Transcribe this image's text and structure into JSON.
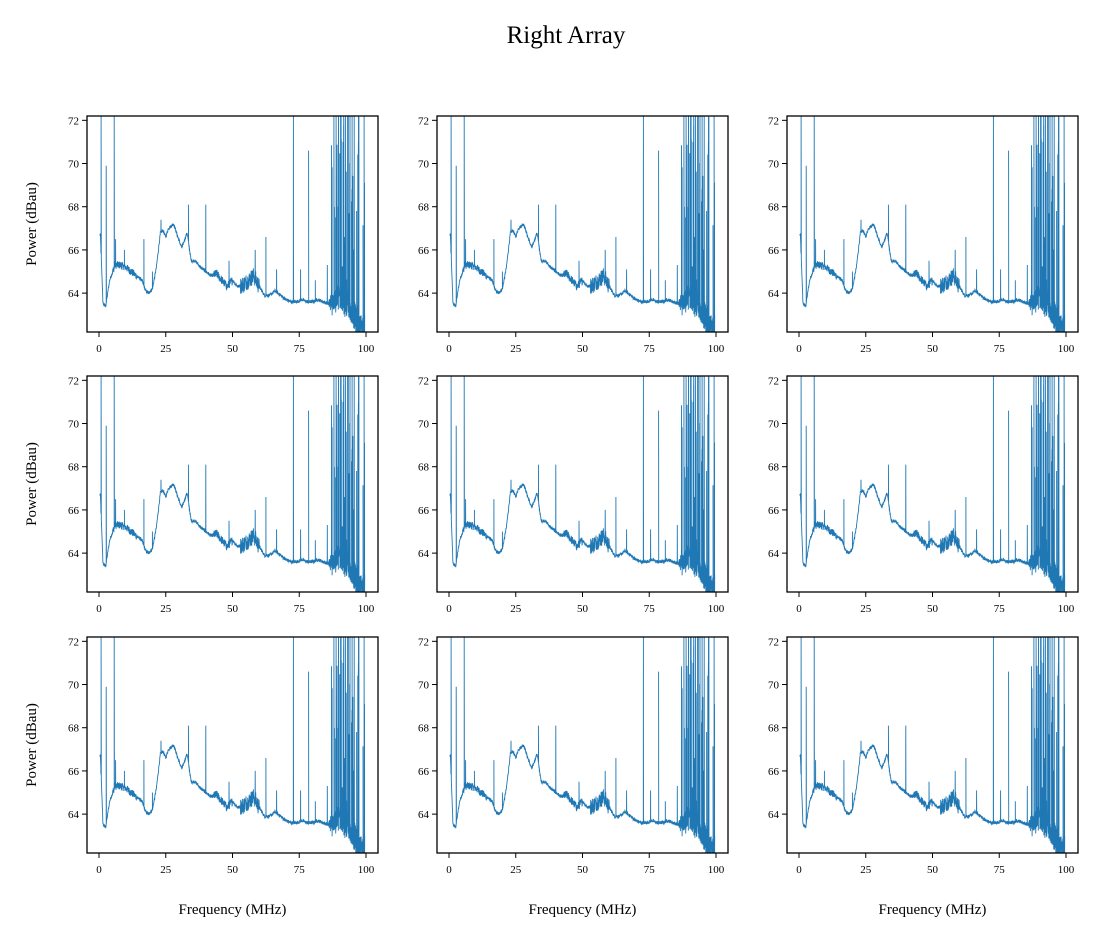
{
  "chart_data": {
    "type": "line",
    "title": "Right Array",
    "layout": {
      "rows": 3,
      "cols": 3
    },
    "xlabel": "Frequency (MHz)",
    "ylabel": "Power (dBau)",
    "xlim": [
      -4.5,
      104.5
    ],
    "ylim": [
      62.2,
      72.2
    ],
    "xticks": [
      0,
      25,
      50,
      75,
      100
    ],
    "yticks": [
      64,
      66,
      68,
      70,
      72
    ],
    "line_color": "#1f77b4",
    "grid": false,
    "legend": "none",
    "series_description": "Power spectrum; all 9 panels show nearly identical traces",
    "baseline": {
      "x": [
        0.5,
        1.5,
        2.5,
        4,
        6,
        8,
        10,
        12,
        14,
        16,
        17.5,
        18.5,
        20,
        21.5,
        23,
        24,
        25,
        26,
        28,
        29.5,
        31,
        33,
        34.5,
        36,
        38,
        40,
        42,
        44,
        46,
        48,
        50,
        52,
        54,
        56,
        58,
        60,
        62,
        64,
        66,
        68,
        70,
        72,
        74,
        76,
        78,
        80,
        82,
        84,
        86,
        88,
        90,
        92,
        94,
        96,
        98,
        99.5
      ],
      "y": [
        66.7,
        63.5,
        63.4,
        64.6,
        65.3,
        65.3,
        65.2,
        65.0,
        64.8,
        64.6,
        64.1,
        64.0,
        64.2,
        65.2,
        66.8,
        66.9,
        66.6,
        67.0,
        67.2,
        66.6,
        66.1,
        66.8,
        65.5,
        65.5,
        65.2,
        65.0,
        64.8,
        64.9,
        64.6,
        64.3,
        64.6,
        64.3,
        64.4,
        64.6,
        64.8,
        64.3,
        63.9,
        63.9,
        64.1,
        63.9,
        63.7,
        63.6,
        63.6,
        63.7,
        63.6,
        63.6,
        63.7,
        63.6,
        63.5,
        63.7,
        64.0,
        63.6,
        63.3,
        62.9,
        62.3,
        62.5
      ]
    },
    "spikes": [
      {
        "x": 0.8,
        "y": 72.2
      },
      {
        "x": 2.7,
        "y": 69.9
      },
      {
        "x": 5.7,
        "y": 72.2
      },
      {
        "x": 6.2,
        "y": 66.5
      },
      {
        "x": 9.5,
        "y": 66.0
      },
      {
        "x": 16.8,
        "y": 66.5
      },
      {
        "x": 20.0,
        "y": 65.0
      },
      {
        "x": 23.2,
        "y": 67.4
      },
      {
        "x": 33.5,
        "y": 68.1
      },
      {
        "x": 40.0,
        "y": 68.1
      },
      {
        "x": 48.7,
        "y": 65.5
      },
      {
        "x": 58.5,
        "y": 66.0
      },
      {
        "x": 62.5,
        "y": 66.6
      },
      {
        "x": 66.5,
        "y": 65.1
      },
      {
        "x": 72.8,
        "y": 72.2
      },
      {
        "x": 75.5,
        "y": 65.1
      },
      {
        "x": 78.5,
        "y": 70.6
      },
      {
        "x": 81.0,
        "y": 64.6
      },
      {
        "x": 85.5,
        "y": 65.3
      },
      {
        "x": 88.0,
        "y": 72.2
      },
      {
        "x": 88.8,
        "y": 72.2
      },
      {
        "x": 89.7,
        "y": 72.2
      },
      {
        "x": 90.5,
        "y": 72.2
      },
      {
        "x": 91.4,
        "y": 71.0
      },
      {
        "x": 92.3,
        "y": 72.2
      },
      {
        "x": 93.1,
        "y": 72.2
      },
      {
        "x": 94.0,
        "y": 70.0
      },
      {
        "x": 94.8,
        "y": 72.2
      },
      {
        "x": 95.6,
        "y": 72.2
      },
      {
        "x": 96.5,
        "y": 67.8
      },
      {
        "x": 97.2,
        "y": 72.2
      },
      {
        "x": 99.3,
        "y": 72.2
      }
    ]
  }
}
